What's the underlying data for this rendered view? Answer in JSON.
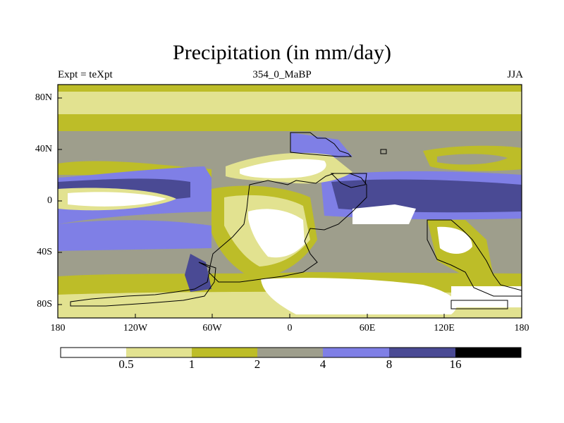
{
  "title": "Precipitation (in mm/day)",
  "subtitle_left": "Expt = teXpt",
  "subtitle_center": "354_0_MaBP",
  "subtitle_right": "JJA",
  "lat_labels": [
    "80N",
    "40N",
    "0",
    "40S",
    "80S"
  ],
  "lon_labels": [
    "180",
    "120W",
    "60W",
    "0",
    "60E",
    "120E",
    "180"
  ],
  "colorbar": {
    "levels": [
      "0.5",
      "1",
      "2",
      "4",
      "8",
      "16"
    ],
    "colors": [
      "#ffffff",
      "#e2e290",
      "#bdbd28",
      "#9e9e8c",
      "#7f7fe6",
      "#4a4a94",
      "#000000"
    ]
  }
}
